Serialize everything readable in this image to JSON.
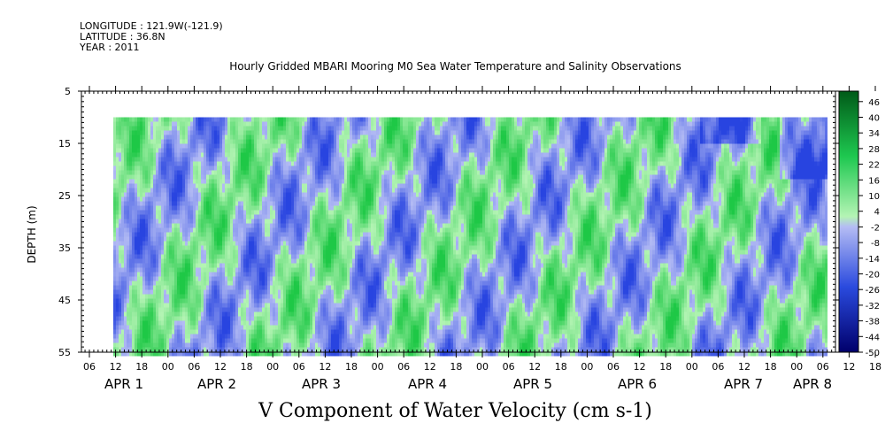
{
  "header": {
    "longitude": "LONGITUDE : 121.9W(-121.9)",
    "latitude": "LATITUDE : 36.8N",
    "year": "YEAR : 2011"
  },
  "chart_data": {
    "type": "heatmap",
    "title": "Hourly Gridded MBARI Mooring M0 Sea Water Temperature and Salinity Observations",
    "xlabel": "V Component of Water Velocity (cm s-1)",
    "ylabel": "DEPTH (m)",
    "y_ticks": [
      "5",
      "15",
      "25",
      "35",
      "45",
      "55"
    ],
    "ylim": [
      55,
      5
    ],
    "x_hour_ticks": [
      "06",
      "12",
      "18",
      "00",
      "06",
      "12",
      "18",
      "00",
      "06",
      "12",
      "18",
      "00",
      "06",
      "12",
      "18",
      "00",
      "06",
      "12",
      "18",
      "00",
      "06",
      "12",
      "18",
      "00",
      "06",
      "12",
      "18",
      "00",
      "06",
      "12",
      "18",
      "00"
    ],
    "x_date_ticks": [
      "APR 1",
      "APR 2",
      "APR 3",
      "APR 4",
      "APR 5",
      "APR 6",
      "APR 7",
      "APR 8"
    ],
    "colorbar_ticks": [
      "46",
      "40",
      "34",
      "28",
      "22",
      "16",
      "10",
      "4",
      "-2",
      "-8",
      "-14",
      "-20",
      "-26",
      "-32",
      "-38",
      "-44",
      "-50"
    ],
    "colorbar_range": [
      -50,
      50
    ],
    "colors": {
      "negative_strong": "#00006b",
      "negative_light": "#b4bcf4",
      "positive_light": "#b4f4b4",
      "positive_strong": "#005a18"
    }
  }
}
